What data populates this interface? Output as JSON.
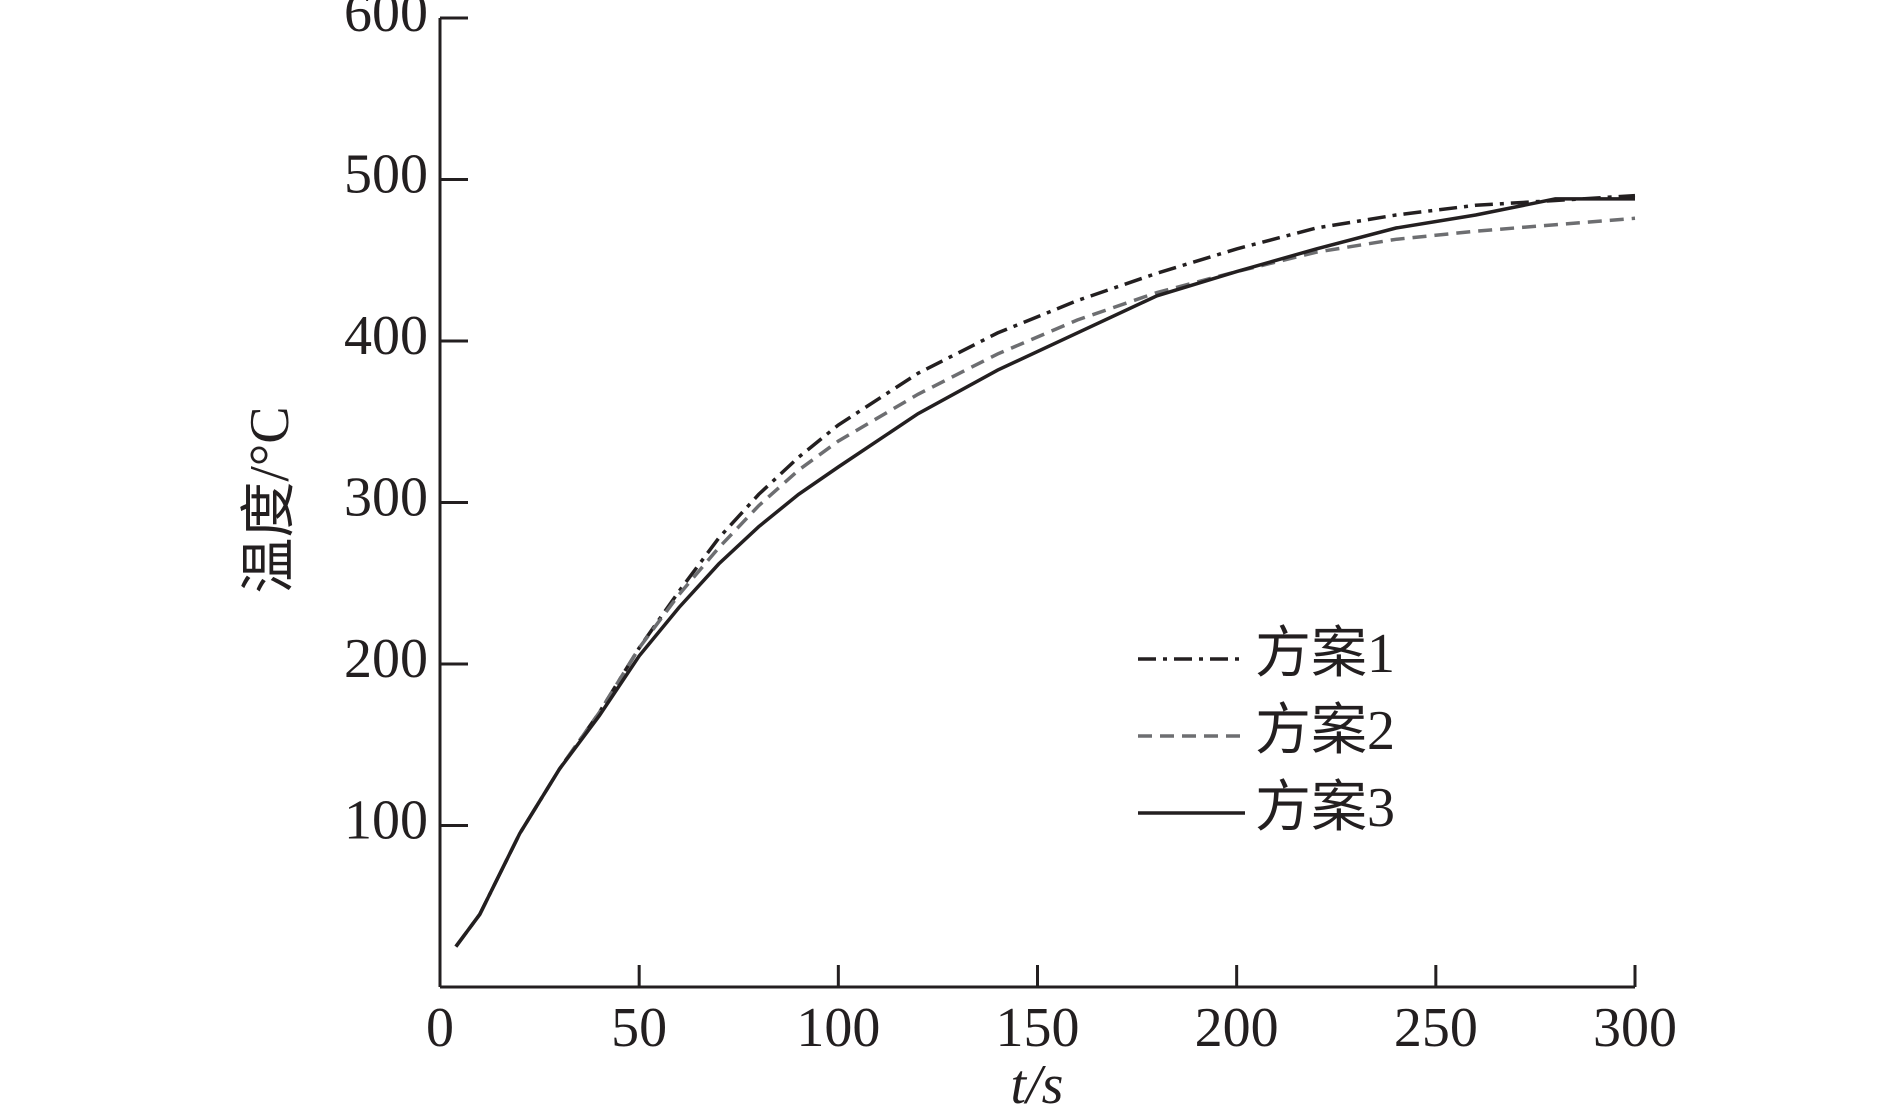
{
  "chart_data": {
    "type": "line",
    "x_label": "t/s",
    "y_label": "温度/°C",
    "xlim": [
      0,
      300
    ],
    "xticks": [
      0,
      50,
      100,
      150,
      200,
      250,
      300
    ],
    "ylim": [
      0,
      600
    ],
    "yticks": [
      100,
      200,
      300,
      400,
      500,
      600
    ],
    "x": [
      4,
      10,
      20,
      30,
      40,
      50,
      60,
      70,
      80,
      90,
      100,
      120,
      140,
      160,
      180,
      200,
      220,
      240,
      260,
      280,
      300
    ],
    "series": [
      {
        "name": "方案1",
        "color": "#231f20",
        "dash": "dash-dot",
        "values": [
          25,
          45,
          95,
          135,
          170,
          210,
          245,
          278,
          305,
          328,
          348,
          380,
          405,
          425,
          442,
          457,
          470,
          478,
          484,
          487,
          490
        ]
      },
      {
        "name": "方案2",
        "color": "#6d6e71",
        "dash": "dash",
        "values": [
          25,
          45,
          95,
          135,
          170,
          210,
          243,
          272,
          298,
          320,
          338,
          367,
          392,
          413,
          430,
          443,
          455,
          463,
          468,
          472,
          476
        ]
      },
      {
        "name": "方案3",
        "color": "#231f20",
        "dash": "solid",
        "values": [
          25,
          45,
          95,
          135,
          168,
          205,
          235,
          262,
          285,
          305,
          322,
          355,
          382,
          405,
          428,
          443,
          457,
          470,
          478,
          488,
          488
        ]
      }
    ]
  }
}
